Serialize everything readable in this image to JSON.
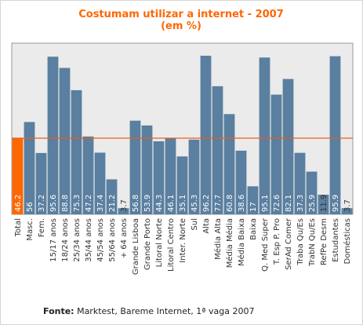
{
  "chart_data": {
    "type": "bar",
    "title": "Costumam utilizar a internet  - 2007",
    "subtitle": "(em %)",
    "categories": [
      "Total",
      "Masc.",
      "Fem.",
      "15/17 anos",
      "18/24 anos",
      "25/34 anos",
      "35/44 anos",
      "45/54 anos",
      "55/64 anos",
      "+ 64 anos",
      "Grande Lisboa",
      "Grande Porto",
      "Litoral Norte",
      "Litoral Centro",
      "Inter. Norte",
      "Sul",
      "Alta",
      "Média Alta",
      "Média Média",
      "Média Baixa",
      "Baixa",
      "Q. Med Super",
      "T. Esp P. Pro",
      "SerAd Comer",
      "Traba Qu/Es",
      "TrabN Qu/Es",
      "RefPe Desm",
      "Estudantes",
      "Domésticas"
    ],
    "values": [
      46.2,
      56,
      37.2,
      95.6,
      88.8,
      75.3,
      47.2,
      37.4,
      21.2,
      3.7,
      56.8,
      53.9,
      44.3,
      46.1,
      35.1,
      45.3,
      96.2,
      77.7,
      60.8,
      38.6,
      17,
      95.1,
      72.6,
      82.1,
      37.3,
      25.9,
      11.9,
      95.9,
      3.7
    ],
    "value_labels": [
      "46.2",
      "56",
      "37.2",
      "95.6",
      "88.8",
      "75.3",
      "47.2",
      "37.4",
      "21.2",
      "3.7",
      "56.8",
      "53.9",
      "44.3",
      "46.1",
      "35.1",
      "45.3",
      "96.2",
      "77.7",
      "60.8",
      "38.6",
      "17",
      "95.1",
      "72.6",
      "82.1",
      "37.3",
      "25.9",
      "11.9",
      "95.9",
      "3.7"
    ],
    "ylim": [
      0,
      100
    ],
    "reference_line": 46.2,
    "xlabel": "",
    "ylabel": "",
    "grid": false,
    "legend": "none",
    "colors": {
      "highlight_bar": "#ff6600",
      "bar": "#5a7fa0",
      "reference_line": "#e8621a",
      "title": "#ff6600",
      "plot_background": "#ebebeb",
      "plot_border": "#999999"
    }
  },
  "source": {
    "label": "Fonte:",
    "text": " Marktest, Bareme Internet, 1ª vaga 2007"
  }
}
